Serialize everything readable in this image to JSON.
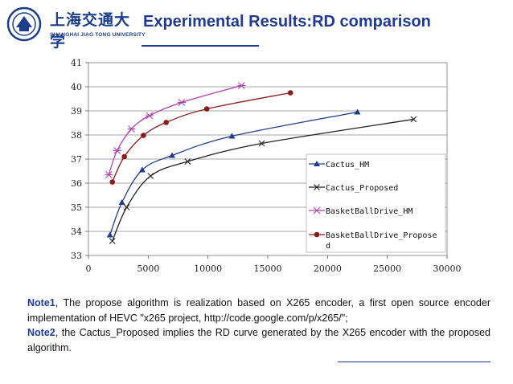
{
  "header": {
    "logo_cn": "上海交通大学",
    "logo_en": "SHANGHAI JIAO TONG UNIVERSITY",
    "title": "Experimental Results:RD comparison"
  },
  "notes": [
    {
      "label": "Note1",
      "text": ",   The propose algorithm is realization based on X265 encoder, a first open source encoder implementation of HEVC \"x265 project, http://code.google.com/p/x265/\";"
    },
    {
      "label": "Note2",
      "text": ",   the Cactus_Proposed implies the RD curve generated by the X265 encoder with the proposed algorithm."
    }
  ],
  "colors": {
    "accent": "#1f3a93"
  },
  "chart_data": {
    "type": "line",
    "xlim": [
      0,
      30000
    ],
    "ylim": [
      33,
      41
    ],
    "xticks": [
      0,
      5000,
      10000,
      15000,
      20000,
      25000,
      30000
    ],
    "yticks": [
      33,
      34,
      35,
      36,
      37,
      38,
      39,
      40,
      41
    ],
    "grid": "horizontal",
    "legend_position": "bottom-right",
    "series": [
      {
        "name": "Cactus_HM",
        "color": "#1f3a93",
        "marker": "triangle",
        "points": [
          [
            1800,
            33.85
          ],
          [
            2800,
            35.2
          ],
          [
            4500,
            36.55
          ],
          [
            7000,
            37.15
          ],
          [
            12000,
            37.95
          ],
          [
            22500,
            38.95
          ]
        ]
      },
      {
        "name": "Cactus_Proposed",
        "color": "#222222",
        "marker": "x",
        "points": [
          [
            2000,
            33.6
          ],
          [
            3200,
            35.0
          ],
          [
            5200,
            36.3
          ],
          [
            8300,
            36.9
          ],
          [
            14500,
            37.65
          ],
          [
            27200,
            38.65
          ]
        ]
      },
      {
        "name": "BasketBallDrive_HM",
        "color": "#b040b0",
        "marker": "star",
        "points": [
          [
            1700,
            36.35
          ],
          [
            2400,
            37.35
          ],
          [
            3600,
            38.25
          ],
          [
            5100,
            38.8
          ],
          [
            7800,
            39.35
          ],
          [
            12800,
            40.05
          ]
        ]
      },
      {
        "name": "BasketBallDrive_Propose\nd",
        "color": "#8b1a1a",
        "marker": "circle",
        "points": [
          [
            2000,
            36.05
          ],
          [
            3000,
            37.1
          ],
          [
            4600,
            37.98
          ],
          [
            6500,
            38.52
          ],
          [
            9900,
            39.08
          ],
          [
            16900,
            39.75
          ]
        ]
      }
    ]
  }
}
